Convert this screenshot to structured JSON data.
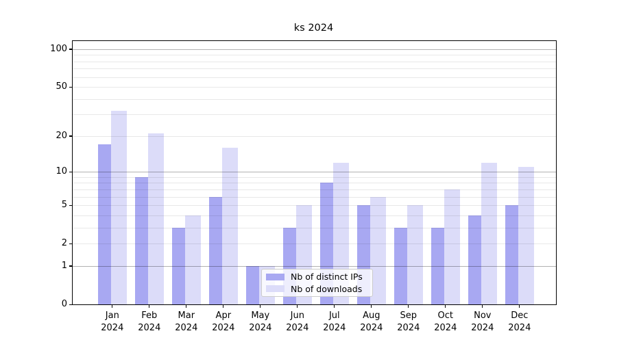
{
  "title": "ks 2024",
  "legend": {
    "items": [
      {
        "label": "Nb of distinct IPs",
        "color": "#a8a8f2"
      },
      {
        "label": "Nb of downloads",
        "color": "#dcdcf9"
      }
    ]
  },
  "chart_data": {
    "type": "bar",
    "title": "ks 2024",
    "months": [
      "Jan",
      "Feb",
      "Mar",
      "Apr",
      "May",
      "Jun",
      "Jul",
      "Aug",
      "Sep",
      "Oct",
      "Nov",
      "Dec"
    ],
    "year": "2024",
    "categories": [
      "Jan 2024",
      "Feb 2024",
      "Mar 2024",
      "Apr 2024",
      "May 2024",
      "Jun 2024",
      "Jul 2024",
      "Aug 2024",
      "Sep 2024",
      "Oct 2024",
      "Nov 2024",
      "Dec 2024"
    ],
    "series": [
      {
        "name": "Nb of distinct IPs",
        "color": "#a8a8f2",
        "values": [
          17,
          9,
          3,
          6,
          1,
          3,
          8,
          5,
          3,
          3,
          4,
          5
        ]
      },
      {
        "name": "Nb of downloads",
        "color": "#dcdcf9",
        "values": [
          32,
          21,
          4,
          16,
          1,
          5,
          12,
          6,
          5,
          7,
          12,
          11
        ]
      }
    ],
    "xlabel": "",
    "ylabel": "",
    "yscale": "log1p",
    "ylim": [
      0,
      116
    ],
    "yticks": [
      0,
      1,
      2,
      5,
      10,
      20,
      50,
      100
    ],
    "major_gridlines": [
      1,
      10,
      100
    ],
    "minor_gridlines": [
      2,
      3,
      4,
      5,
      6,
      7,
      8,
      9,
      20,
      30,
      40,
      50,
      60,
      70,
      80,
      90
    ],
    "grid": true,
    "grid_above_bars": true,
    "legend_position": "lower center-right"
  }
}
